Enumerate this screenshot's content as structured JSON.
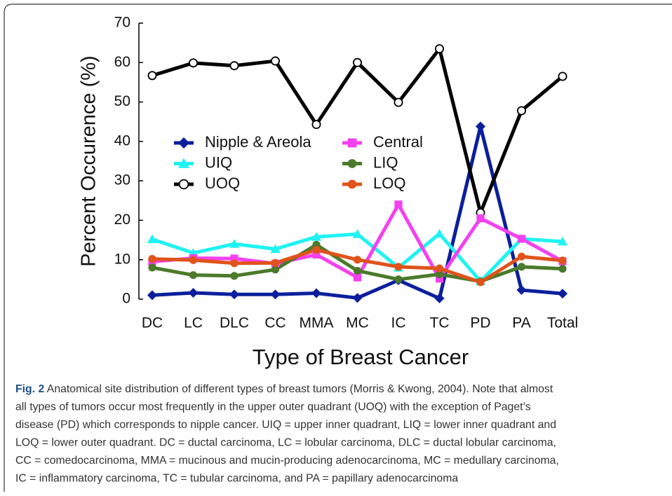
{
  "chart_data": {
    "type": "line",
    "ylabel": "Percent Occurence (%)",
    "xlabel": "Type of Breast Cancer",
    "categories": [
      "DC",
      "LC",
      "DLC",
      "CC",
      "MMA",
      "MC",
      "IC",
      "TC",
      "PD",
      "PA",
      "Total"
    ],
    "ylim": [
      0,
      70
    ],
    "yticks": [
      0,
      10,
      20,
      30,
      40,
      50,
      60,
      70
    ],
    "series": [
      {
        "name": "Nipple & Areola",
        "color": "#0b1f9c",
        "marker": "diamond",
        "values": [
          1,
          1.6,
          1.2,
          1.2,
          1.5,
          0.3,
          4.8,
          0.2,
          43.8,
          2.3,
          1.4
        ]
      },
      {
        "name": "UIQ",
        "color": "#1ff2f2",
        "marker": "triangle",
        "values": [
          15.2,
          11.7,
          14,
          12.7,
          15.8,
          16.5,
          8,
          16.6,
          4.5,
          15.3,
          14.6
        ]
      },
      {
        "name": "UOQ",
        "color": "#000000",
        "marker": "open-circle",
        "values": [
          56.7,
          59.9,
          59.2,
          60.4,
          44.3,
          60,
          49.9,
          63.5,
          21.9,
          47.8,
          56.5
        ]
      },
      {
        "name": "Central",
        "color": "#f53ff0",
        "marker": "square",
        "values": [
          9.5,
          10.4,
          10.3,
          9,
          11.3,
          5.5,
          24,
          5.2,
          20.5,
          15.3,
          9.6
        ]
      },
      {
        "name": "LIQ",
        "color": "#4a7a2a",
        "marker": "circle",
        "values": [
          8,
          6.1,
          5.9,
          7.5,
          13.8,
          7.2,
          5,
          6.3,
          4.5,
          8.2,
          7.7
        ]
      },
      {
        "name": "LOQ",
        "color": "#e0531a",
        "marker": "circle",
        "values": [
          10.2,
          9.9,
          9.1,
          9.2,
          12.5,
          10,
          8.2,
          7.8,
          4.3,
          10.8,
          9.8
        ]
      }
    ]
  },
  "caption": {
    "label": "Fig. 2",
    "lines": [
      "Anatomical site distribution of different types of breast tumors (Morris & Kwong, 2004). Note that almost",
      "all types of tumors occur most frequently in the upper outer quadrant (UOQ) with the exception of Paget’s",
      "disease (PD) which corresponds to nipple cancer. UIQ = upper inner quadrant, LIQ = lower inner quadrant and",
      "LOQ = lower outer quadrant. DC = ductal carcinoma, LC = lobular carcinoma, DLC = ductal lobular carcinoma,",
      "CC = comedocarcinoma, MMA = mucinous and mucin-producing adenocarcinoma, MC = medullary carcinoma,",
      "IC = inflammatory carcinoma, TC = tubular carcinoma, and PA = papillary adenocarcinoma"
    ]
  }
}
